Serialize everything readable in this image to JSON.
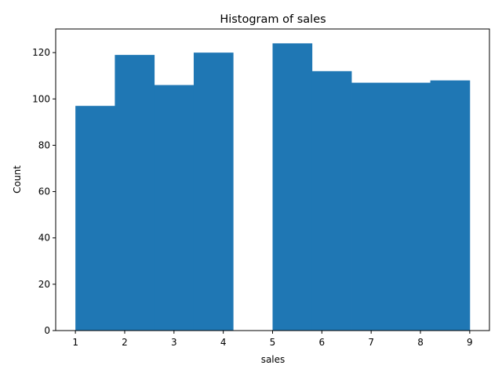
{
  "chart_data": {
    "type": "bar",
    "title": "Histogram of sales",
    "xlabel": "sales",
    "ylabel": "Count",
    "bins": [
      {
        "x0": 1.0,
        "x1": 1.8,
        "count": 97
      },
      {
        "x0": 1.8,
        "x1": 2.6,
        "count": 119
      },
      {
        "x0": 2.6,
        "x1": 3.4,
        "count": 106
      },
      {
        "x0": 3.4,
        "x1": 4.2,
        "count": 120
      },
      {
        "x0": 4.2,
        "x1": 5.0,
        "count": 0
      },
      {
        "x0": 5.0,
        "x1": 5.8,
        "count": 124
      },
      {
        "x0": 5.8,
        "x1": 6.6,
        "count": 112
      },
      {
        "x0": 6.6,
        "x1": 7.4,
        "count": 107
      },
      {
        "x0": 7.4,
        "x1": 8.2,
        "count": 107
      },
      {
        "x0": 8.2,
        "x1": 9.0,
        "count": 108
      }
    ],
    "xlim": [
      0.6,
      9.4
    ],
    "ylim": [
      0,
      130.2
    ],
    "xticks": [
      1,
      2,
      3,
      4,
      5,
      6,
      7,
      8,
      9
    ],
    "yticks": [
      0,
      20,
      40,
      60,
      80,
      100,
      120
    ],
    "bar_color": "#1f77b4",
    "grid": false,
    "legend": "none"
  }
}
